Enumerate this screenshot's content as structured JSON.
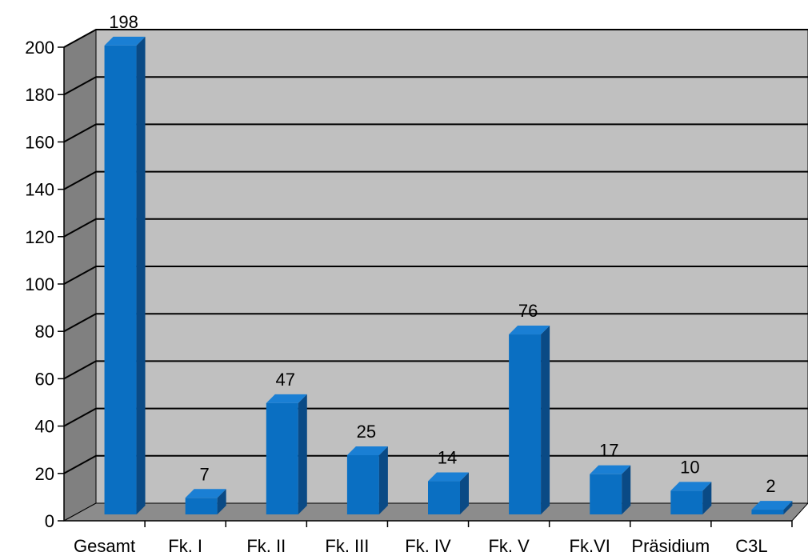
{
  "chart_data": {
    "type": "bar",
    "style": "3d-column",
    "categories": [
      "Gesamt",
      "Fk. I",
      "Fk. II",
      "Fk. III",
      "Fk. IV",
      "Fk. V",
      "Fk.VI",
      "Präsidium",
      "C3L"
    ],
    "values": [
      198,
      7,
      47,
      25,
      14,
      76,
      17,
      10,
      2
    ],
    "data_labels": [
      "198",
      "7",
      "47",
      "25",
      "14",
      "76",
      "17",
      "10",
      "2"
    ],
    "ylim": [
      0,
      200
    ],
    "y_ticks": [
      0,
      20,
      40,
      60,
      80,
      100,
      120,
      140,
      160,
      180,
      200
    ],
    "y_tick_labels": [
      "0",
      "20",
      "40",
      "60",
      "80",
      "100",
      "120",
      "140",
      "160",
      "180",
      "200"
    ],
    "grid": true,
    "legend": "none",
    "colors": {
      "bar_front": "#0a6fc2",
      "bar_top": "#1a7fd4",
      "bar_side": "#0a4a85",
      "wall_back": "#c0c0c0",
      "wall_side": "#808080",
      "floor": "#8c8c8c",
      "grid": "#000000"
    }
  }
}
